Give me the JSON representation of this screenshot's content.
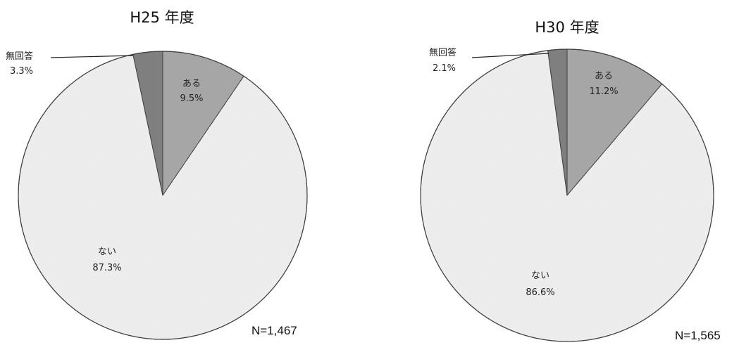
{
  "chart_data": [
    {
      "type": "pie",
      "title": "H25 年度",
      "n_label": "N=1,467",
      "slices": [
        {
          "label": "ある",
          "value": 9.5,
          "value_label": "9.5%",
          "color": "#a6a6a6"
        },
        {
          "label": "ない",
          "value": 87.3,
          "value_label": "87.3%",
          "color": "#efefef"
        },
        {
          "label": "無回答",
          "value": 3.3,
          "value_label": "3.3%",
          "color": "#7f7f7f"
        }
      ]
    },
    {
      "type": "pie",
      "title": "H30 年度",
      "n_label": "N=1,565",
      "slices": [
        {
          "label": "ある",
          "value": 11.2,
          "value_label": "11.2%",
          "color": "#a6a6a6"
        },
        {
          "label": "ない",
          "value": 86.6,
          "value_label": "86.6%",
          "color": "#efefef"
        },
        {
          "label": "無回答",
          "value": 2.1,
          "value_label": "2.1%",
          "color": "#7f7f7f"
        }
      ]
    }
  ]
}
